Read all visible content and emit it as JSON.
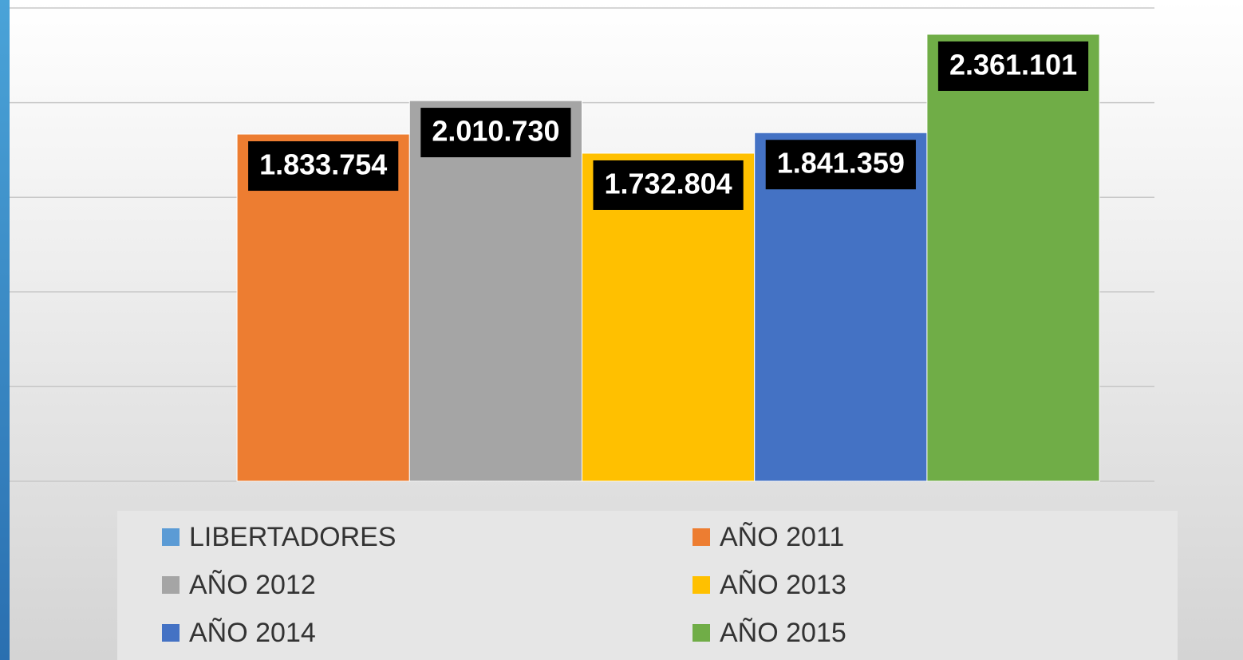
{
  "chart_data": {
    "type": "bar",
    "categories": [
      null
    ],
    "series": [
      {
        "name": "LIBERTADORES",
        "color": "#5b9bd5",
        "values": [
          null
        ]
      },
      {
        "name": "AÑO 2011",
        "color": "#ed7d31",
        "values": [
          1833754
        ],
        "value_labels": [
          "1.833.754"
        ]
      },
      {
        "name": "AÑO 2012",
        "color": "#a5a5a5",
        "values": [
          2010730
        ],
        "value_labels": [
          "2.010.730"
        ]
      },
      {
        "name": "AÑO 2013",
        "color": "#ffc000",
        "values": [
          1732804
        ],
        "value_labels": [
          "1.732.804"
        ]
      },
      {
        "name": "AÑO 2014",
        "color": "#4472c4",
        "values": [
          1841359
        ],
        "value_labels": [
          "1.841.359"
        ]
      },
      {
        "name": "AÑO 2015",
        "color": "#70ad47",
        "values": [
          2361101
        ],
        "value_labels": [
          "2.361.101"
        ]
      }
    ],
    "ylim": [
      0,
      2500000
    ],
    "yticks": [
      0,
      500000,
      1000000,
      1500000,
      2000000,
      2500000
    ],
    "grid": true,
    "legend": "bottom"
  }
}
